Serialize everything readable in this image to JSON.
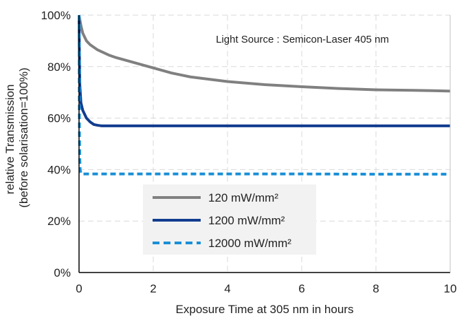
{
  "chart_data": {
    "type": "line",
    "title": "",
    "xlabel": "Exposure Time at 305 nm in hours",
    "ylabel": [
      "relative Transmission",
      "(before solarisation=100%)"
    ],
    "xlim": [
      0,
      10
    ],
    "ylim": [
      0,
      100
    ],
    "x_ticks": [
      "0",
      "2",
      "4",
      "6",
      "8",
      "10"
    ],
    "y_ticks": [
      "0%",
      "20%",
      "40%",
      "60%",
      "80%",
      "100%"
    ],
    "x_tick_values": [
      0,
      2,
      4,
      6,
      8,
      10
    ],
    "y_tick_values": [
      0,
      20,
      40,
      60,
      80,
      100
    ],
    "grid": true,
    "annotation": "Light Source : Semicon-Laser 405 nm",
    "legend_position": "bottom-center",
    "series": [
      {
        "name": "120 mW/mm²",
        "color": "#808080",
        "dash": "solid",
        "x": [
          0,
          0.05,
          0.1,
          0.2,
          0.3,
          0.5,
          0.8,
          1,
          1.5,
          2,
          2.5,
          3,
          4,
          5,
          6,
          7,
          8,
          9,
          10
        ],
        "y": [
          100,
          96,
          93,
          90,
          88.5,
          86.5,
          84.5,
          83.5,
          81.5,
          79.5,
          77.5,
          76,
          74.2,
          73,
          72.2,
          71.5,
          71,
          70.8,
          70.5
        ]
      },
      {
        "name": "1200 mW/mm²",
        "color": "#123d8f",
        "dash": "solid",
        "x": [
          0,
          0.01,
          0.02,
          0.05,
          0.1,
          0.2,
          0.3,
          0.4,
          0.5,
          0.6,
          1,
          2,
          4,
          6,
          8,
          10
        ],
        "y": [
          100,
          85,
          73,
          66,
          63,
          60,
          58.5,
          57.5,
          57.2,
          57,
          57,
          57,
          57,
          57,
          57,
          57
        ]
      },
      {
        "name": "12000 mW/mm²",
        "color": "#1a8fd6",
        "dash": "dashed",
        "x": [
          0,
          0.005,
          0.01,
          0.02,
          0.03,
          0.05,
          0.1,
          1,
          2,
          4,
          6,
          8,
          10
        ],
        "y": [
          100,
          75,
          55,
          44,
          40,
          38.5,
          38.3,
          38.3,
          38.3,
          38.3,
          38.3,
          38.2,
          38.2
        ]
      }
    ]
  }
}
